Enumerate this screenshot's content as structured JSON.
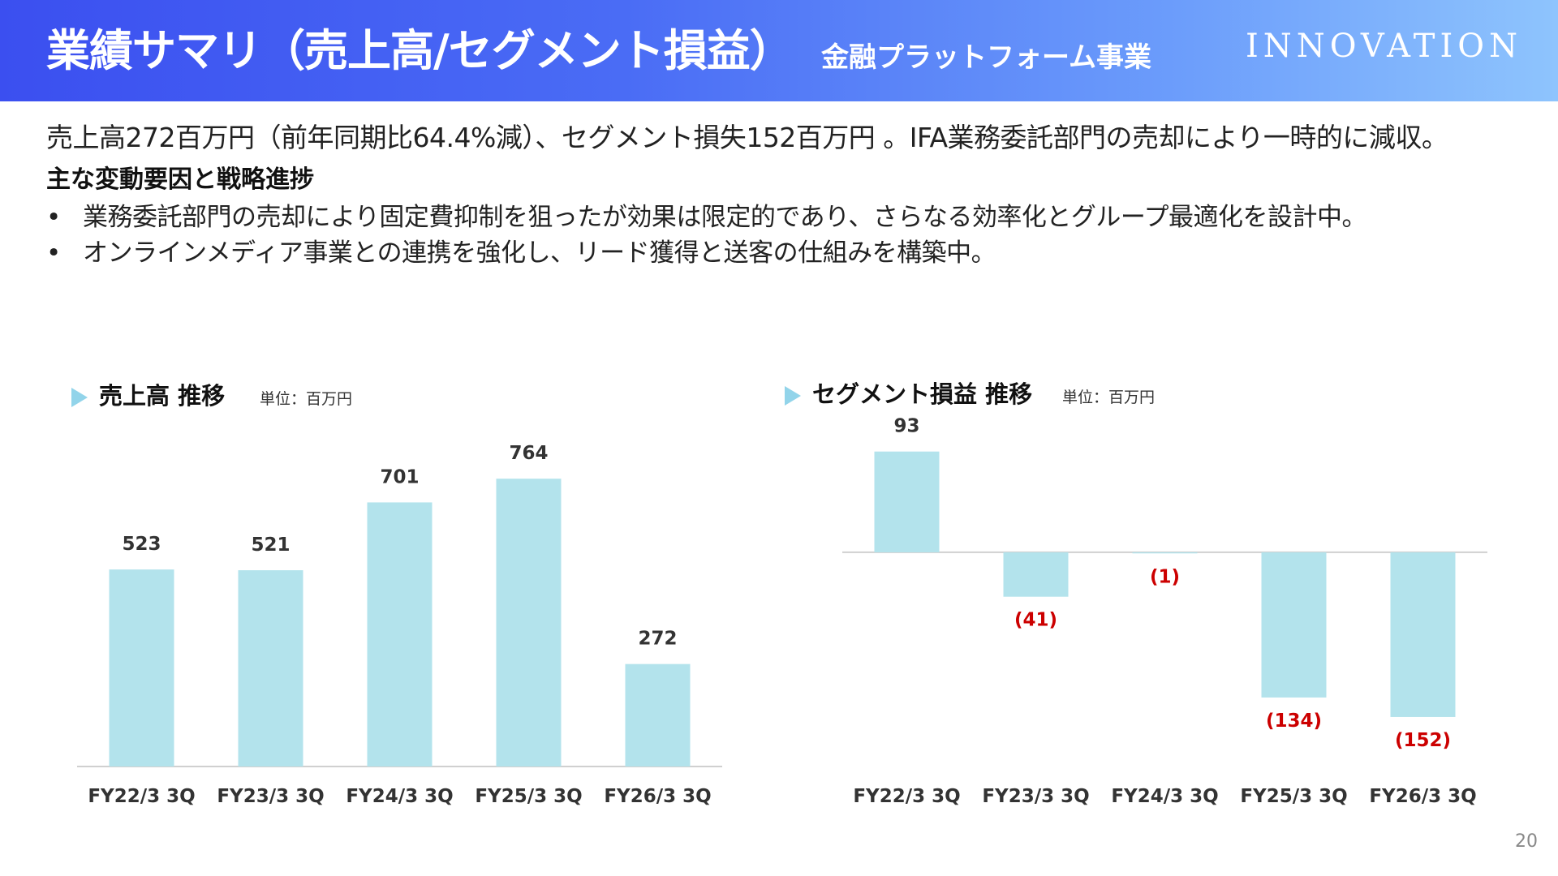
{
  "header": {
    "title": "業績サマリ（売上高/セグメント損益）",
    "subtitle": "金融プラットフォーム事業",
    "brand": "INNOVATION"
  },
  "summary": "売上高272百万円（前年同期比64.4%減）、セグメント損失152百万円 。IFA業務委託部門の売却により一時的に減収。",
  "factors": {
    "heading": "主な変動要因と戦略進捗",
    "bullet_symbol": "•",
    "items": [
      "業務委託部門の売却により固定費抑制を狙ったが効果は限定的であり、さらなる効率化とグループ最適化を設計中。",
      "オンラインメディア事業との連携を強化し、リード獲得と送客の仕組みを構築中。"
    ]
  },
  "colors": {
    "bar": "#b3e3ec",
    "negative_label": "#cc0000",
    "value_label": "#333333",
    "axis": "#d0d0d0",
    "accent_triangle": "#92d4ea"
  },
  "chart_data": [
    {
      "type": "bar",
      "title": "売上高 推移",
      "unit": "単位：百万円",
      "categories": [
        "FY22/3 3Q",
        "FY23/3 3Q",
        "FY24/3 3Q",
        "FY25/3 3Q",
        "FY26/3 3Q"
      ],
      "values": [
        523,
        521,
        701,
        764,
        272
      ],
      "labels": [
        "523",
        "521",
        "701",
        "764",
        "272"
      ],
      "ylim": [
        0,
        900
      ],
      "grid": false,
      "legend": "none"
    },
    {
      "type": "bar",
      "title": "セグメント損益 推移",
      "unit": "単位：百万円",
      "categories": [
        "FY22/3 3Q",
        "FY23/3 3Q",
        "FY24/3 3Q",
        "FY25/3 3Q",
        "FY26/3 3Q"
      ],
      "values": [
        93,
        -41,
        -1,
        -134,
        -152
      ],
      "labels": [
        "93",
        "(41)",
        "(1)",
        "(134)",
        "(152)"
      ],
      "ylim": [
        -170,
        110
      ],
      "grid": false,
      "legend": "none"
    }
  ],
  "page_number": "20"
}
